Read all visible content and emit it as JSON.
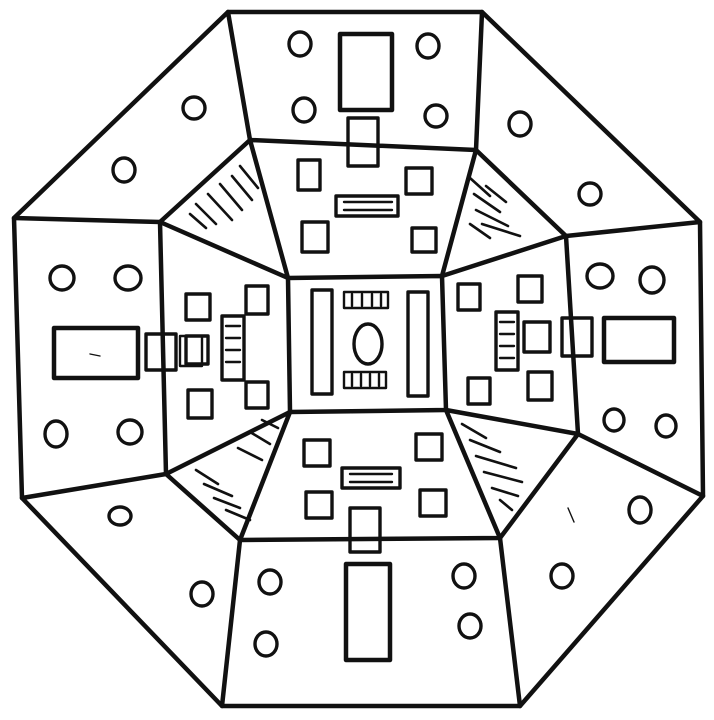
{
  "drawing": {
    "ink_color": "#111111",
    "paper_color": "#ffffff",
    "rooms": {
      "center": "center-room",
      "inner_ring": [
        "inner-north",
        "inner-east",
        "inner-south",
        "inner-west"
      ],
      "hatched_corners": [
        "hatch-northwest",
        "hatch-northeast",
        "hatch-southeast",
        "hatch-southwest"
      ],
      "outer_ring": [
        "outer-north",
        "outer-northeast",
        "outer-east",
        "outer-southeast",
        "outer-south",
        "outer-southwest",
        "outer-west",
        "outer-northwest"
      ]
    }
  }
}
